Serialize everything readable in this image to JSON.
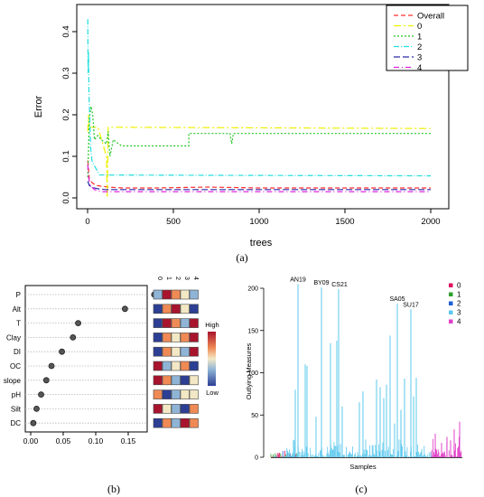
{
  "panel_labels": {
    "a": "(a)",
    "b": "(b)",
    "c": "(c)"
  },
  "chart_data": [
    {
      "id": "a",
      "type": "line",
      "title": "",
      "xlabel": "trees",
      "ylabel": "Error",
      "xlim": [
        0,
        2000
      ],
      "ylim": [
        0,
        0.44
      ],
      "xticks": [
        0,
        500,
        1000,
        1500,
        2000
      ],
      "yticks": [
        0.0,
        0.1,
        0.2,
        0.3,
        0.4
      ],
      "legend_position": "top-right",
      "series": [
        {
          "name": "Overall",
          "color": "#ff2d2d",
          "dash": "5,3",
          "points": [
            [
              1,
              0.09
            ],
            [
              5,
              0.07
            ],
            [
              10,
              0.045
            ],
            [
              20,
              0.04
            ],
            [
              30,
              0.035
            ],
            [
              50,
              0.03
            ],
            [
              80,
              0.028
            ],
            [
              120,
              0.026
            ],
            [
              200,
              0.024
            ],
            [
              400,
              0.024
            ],
            [
              700,
              0.026
            ],
            [
              1000,
              0.024
            ],
            [
              1500,
              0.024
            ],
            [
              2000,
              0.024
            ]
          ]
        },
        {
          "name": "0",
          "color": "#f0f000",
          "dash": "8,3,2,3",
          "points": [
            [
              1,
              0.16
            ],
            [
              5,
              0.2
            ],
            [
              10,
              0.17
            ],
            [
              30,
              0.17
            ],
            [
              60,
              0.17
            ],
            [
              110,
              0.1
            ],
            [
              115,
              0.0
            ],
            [
              120,
              0.17
            ],
            [
              140,
              0.17
            ],
            [
              2000,
              0.167
            ]
          ]
        },
        {
          "name": "1",
          "color": "#22c522",
          "dash": "2,2",
          "points": [
            [
              1,
              0.05
            ],
            [
              10,
              0.19
            ],
            [
              20,
              0.22
            ],
            [
              30,
              0.2
            ],
            [
              40,
              0.14
            ],
            [
              60,
              0.15
            ],
            [
              80,
              0.14
            ],
            [
              110,
              0.13
            ],
            [
              120,
              0.16
            ],
            [
              130,
              0.1
            ],
            [
              150,
              0.14
            ],
            [
              180,
              0.13
            ],
            [
              200,
              0.125
            ],
            [
              590,
              0.125
            ],
            [
              590,
              0.155
            ],
            [
              830,
              0.155
            ],
            [
              840,
              0.13
            ],
            [
              850,
              0.155
            ],
            [
              2000,
              0.155
            ]
          ]
        },
        {
          "name": "2",
          "color": "#22dddd",
          "dash": "6,2,1,2",
          "points": [
            [
              1,
              0.43
            ],
            [
              3,
              0.3
            ],
            [
              5,
              0.35
            ],
            [
              8,
              0.25
            ],
            [
              12,
              0.2
            ],
            [
              18,
              0.12
            ],
            [
              25,
              0.09
            ],
            [
              35,
              0.08
            ],
            [
              50,
              0.07
            ],
            [
              70,
              0.055
            ],
            [
              100,
              0.055
            ],
            [
              2000,
              0.053
            ]
          ]
        },
        {
          "name": "3",
          "color": "#2a2aa8",
          "dash": "7,3",
          "points": [
            [
              1,
              0.04
            ],
            [
              10,
              0.03
            ],
            [
              30,
              0.025
            ],
            [
              60,
              0.022
            ],
            [
              100,
              0.02
            ],
            [
              500,
              0.02
            ],
            [
              2000,
              0.02
            ]
          ]
        },
        {
          "name": "4",
          "color": "#e020e0",
          "dash": "6,3,1,3",
          "points": [
            [
              1,
              0.08
            ],
            [
              5,
              0.05
            ],
            [
              15,
              0.03
            ],
            [
              40,
              0.02
            ],
            [
              80,
              0.015
            ],
            [
              150,
              0.015
            ],
            [
              500,
              0.015
            ],
            [
              2000,
              0.015
            ]
          ]
        }
      ]
    },
    {
      "id": "b",
      "type": "scatter",
      "xlim": [
        0,
        0.19
      ],
      "xticks": [
        0.0,
        0.05,
        0.1,
        0.15
      ],
      "xtick_labels": [
        "0.00",
        "0.05",
        "0.10",
        "0.15"
      ],
      "categories": [
        "P",
        "Alt",
        "T",
        "Clay",
        "DI",
        "OC",
        "slope",
        "pH",
        "Silt",
        "DC"
      ],
      "values": [
        0.19,
        0.145,
        0.073,
        0.065,
        0.048,
        0.032,
        0.024,
        0.016,
        0.009,
        0.004
      ],
      "heatmap": {
        "columns": [
          "0",
          "1",
          "2",
          "3",
          "4"
        ],
        "levels": [
          [
            1,
            4,
            3,
            2,
            1
          ],
          [
            0,
            3,
            4,
            2,
            0
          ],
          [
            0,
            4,
            3,
            1,
            4
          ],
          [
            0,
            3,
            2,
            3,
            4
          ],
          [
            0,
            3,
            2,
            1,
            4
          ],
          [
            4,
            1,
            2,
            3,
            0
          ],
          [
            4,
            3,
            1,
            0,
            2
          ],
          [
            3,
            0,
            1,
            2,
            2
          ],
          [
            4,
            2,
            1,
            0,
            3
          ],
          [
            0,
            3,
            1,
            4,
            3
          ]
        ],
        "palette": [
          "#2c3f94",
          "#8fb4d6",
          "#f3e8c5",
          "#ef8a55",
          "#a8142d"
        ],
        "colorbar_labels": {
          "high": "High",
          "low": "Low"
        }
      }
    },
    {
      "id": "c",
      "type": "bar",
      "xlabel": "Samples",
      "ylabel": "Outlying Measures",
      "ylim": [
        0,
        210
      ],
      "yticks": [
        0,
        50,
        100,
        150,
        200
      ],
      "legend_position": "top-right",
      "classes": [
        {
          "name": "0",
          "color": "#e0115f"
        },
        {
          "name": "1",
          "color": "#2ca02c"
        },
        {
          "name": "2",
          "color": "#1f5fd6"
        },
        {
          "name": "3",
          "color": "#5bc8ee"
        },
        {
          "name": "4",
          "color": "#e040c8"
        }
      ],
      "annotations": [
        {
          "label": "AN19",
          "value": 205
        },
        {
          "label": "BY09",
          "value": 201
        },
        {
          "label": "CS21",
          "value": 199
        },
        {
          "label": "SA05",
          "value": 182
        },
        {
          "label": "SU17",
          "value": 175
        }
      ]
    }
  ]
}
